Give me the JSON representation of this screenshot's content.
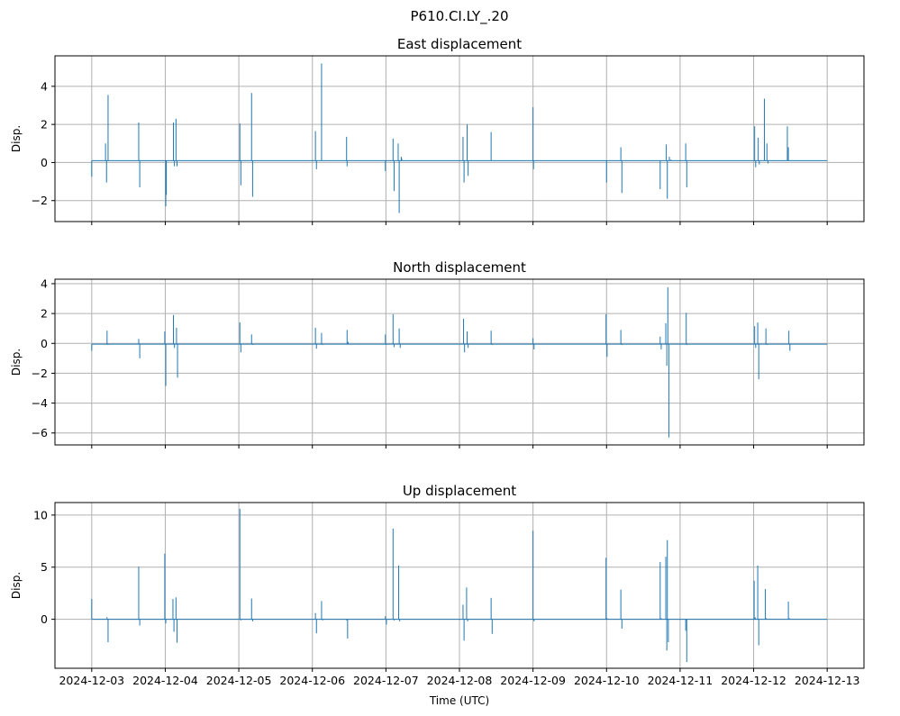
{
  "figure": {
    "title": "P610.CI.LY_.20",
    "xlabel": "Time (UTC)"
  },
  "colors": {
    "trace": "#1f77b4",
    "grid": "#b0b0b0"
  },
  "chart_data": [
    {
      "type": "line",
      "title": "East displacement",
      "xlabel": "",
      "ylabel": "Disp.",
      "ylim": [
        -3.1,
        5.6
      ],
      "yticks": [
        -2,
        0,
        2,
        4
      ],
      "grid": true,
      "x_range": [
        "2024-12-03",
        "2024-12-13"
      ],
      "baseline": 0.1,
      "series": [
        {
          "x": [
            "2024-12-03 00:00",
            "2024-12-03 00:10",
            "2024-12-03 04:30",
            "2024-12-03 04:50",
            "2024-12-03 05:20",
            "2024-12-03 05:40",
            "2024-12-03 15:20",
            "2024-12-03 15:40",
            "2024-12-04 00:10",
            "2024-12-04 00:20",
            "2024-12-04 02:40",
            "2024-12-04 03:00",
            "2024-12-04 03:30",
            "2024-12-04 03:50",
            "2024-12-05 00:20",
            "2024-12-05 00:40",
            "2024-12-05 04:10",
            "2024-12-05 04:30",
            "2024-12-06 01:00",
            "2024-12-06 01:20",
            "2024-12-06 03:00",
            "2024-12-06 03:20",
            "2024-12-06 11:10",
            "2024-12-06 11:20",
            "2024-12-06 23:50",
            "2024-12-07 00:00",
            "2024-12-07 02:20",
            "2024-12-07 02:40",
            "2024-12-07 04:00",
            "2024-12-07 04:20",
            "2024-12-07 05:00",
            "2024-12-07 05:10",
            "2024-12-08 01:10",
            "2024-12-08 01:30",
            "2024-12-08 02:30",
            "2024-12-08 02:50",
            "2024-12-08 10:20",
            "2024-12-08 10:30",
            "2024-12-09 00:00",
            "2024-12-09 00:10",
            "2024-12-09 00:20",
            "2024-12-10 00:00",
            "2024-12-10 00:20",
            "2024-12-10 04:40",
            "2024-12-10 05:00",
            "2024-12-10 17:30",
            "2024-12-10 17:50",
            "2024-12-10 19:30",
            "2024-12-10 19:50",
            "2024-12-10 20:30",
            "2024-12-10 21:00",
            "2024-12-11 01:50",
            "2024-12-11 02:10",
            "2024-12-12 00:20",
            "2024-12-12 00:40",
            "2024-12-12 01:30",
            "2024-12-12 01:50",
            "2024-12-12 03:30",
            "2024-12-12 03:50",
            "2024-12-12 04:20",
            "2024-12-12 04:40",
            "2024-12-12 11:00",
            "2024-12-12 11:20",
            "2024-12-12 12:00"
          ],
          "y": [
            -0.75,
            0.1,
            1.0,
            -1.05,
            3.55,
            0.1,
            2.1,
            -1.3,
            -2.3,
            -1.7,
            2.1,
            -0.2,
            2.3,
            -0.2,
            2.05,
            -1.2,
            3.65,
            -1.8,
            1.65,
            -0.35,
            5.2,
            0.1,
            1.35,
            -0.2,
            -0.45,
            0.1,
            1.25,
            -1.5,
            1.0,
            -2.65,
            0.3,
            0.2,
            1.35,
            -1.05,
            2.0,
            -0.7,
            1.6,
            0.1,
            2.9,
            -0.35,
            0.1,
            -1.05,
            0.1,
            0.8,
            -1.6,
            -1.4,
            0.1,
            0.95,
            -1.9,
            0.3,
            0.15,
            1.0,
            -1.3,
            1.9,
            -0.25,
            1.3,
            -0.1,
            3.35,
            0.1,
            1.0,
            -0.05,
            1.9,
            0.8,
            0.1
          ]
        }
      ]
    },
    {
      "type": "line",
      "title": "North displacement",
      "xlabel": "",
      "ylabel": "Disp.",
      "ylim": [
        -6.8,
        4.3
      ],
      "yticks": [
        -6,
        -4,
        -2,
        0,
        2,
        4
      ],
      "grid": true,
      "x_range": [
        "2024-12-03",
        "2024-12-13"
      ],
      "baseline": -0.05,
      "series": [
        {
          "x": [
            "2024-12-03 00:00",
            "2024-12-03 00:10",
            "2024-12-03 05:00",
            "2024-12-03 05:20",
            "2024-12-03 15:20",
            "2024-12-03 15:40",
            "2024-12-03 23:50",
            "2024-12-04 00:10",
            "2024-12-04 02:40",
            "2024-12-04 03:00",
            "2024-12-04 03:40",
            "2024-12-04 04:00",
            "2024-12-05 00:20",
            "2024-12-05 00:40",
            "2024-12-05 04:10",
            "2024-12-05 04:30",
            "2024-12-06 01:00",
            "2024-12-06 01:20",
            "2024-12-06 03:00",
            "2024-12-06 03:20",
            "2024-12-06 11:20",
            "2024-12-06 11:40",
            "2024-12-06 23:50",
            "2024-12-07 00:10",
            "2024-12-07 02:20",
            "2024-12-07 02:40",
            "2024-12-07 04:20",
            "2024-12-07 04:40",
            "2024-12-08 01:20",
            "2024-12-08 01:40",
            "2024-12-08 02:30",
            "2024-12-08 02:50",
            "2024-12-08 10:20",
            "2024-12-08 10:40",
            "2024-12-09 00:00",
            "2024-12-09 00:20",
            "2024-12-09 23:50",
            "2024-12-10 00:10",
            "2024-12-10 04:40",
            "2024-12-10 05:00",
            "2024-12-10 17:30",
            "2024-12-10 17:50",
            "2024-12-10 19:20",
            "2024-12-10 19:40",
            "2024-12-10 20:00",
            "2024-12-10 20:20",
            "2024-12-11 02:00",
            "2024-12-11 02:20",
            "2024-12-12 00:20",
            "2024-12-12 00:40",
            "2024-12-12 01:20",
            "2024-12-12 01:40",
            "2024-12-12 04:00",
            "2024-12-12 04:20",
            "2024-12-12 11:30",
            "2024-12-12 11:50"
          ],
          "y": [
            -0.5,
            -0.05,
            0.85,
            -0.1,
            0.3,
            -1.0,
            0.8,
            -2.85,
            1.9,
            -0.3,
            1.05,
            -2.3,
            1.4,
            -0.6,
            0.6,
            -0.1,
            1.05,
            -0.35,
            0.7,
            -0.1,
            0.9,
            0.1,
            0.6,
            -0.1,
            1.95,
            -0.25,
            1.0,
            -0.3,
            1.65,
            -0.6,
            0.8,
            -0.3,
            0.85,
            -0.1,
            0.35,
            -0.4,
            1.95,
            -0.9,
            0.9,
            -0.1,
            0.45,
            -0.4,
            1.35,
            -1.5,
            3.75,
            -6.3,
            2.05,
            -0.1,
            1.15,
            -0.3,
            1.4,
            -2.4,
            1.0,
            -0.1,
            0.85,
            -0.5
          ]
        }
      ]
    },
    {
      "type": "line",
      "title": "Up displacement",
      "xlabel": "Time (UTC)",
      "ylabel": "Disp.",
      "ylim": [
        -4.7,
        11.2
      ],
      "yticks": [
        0,
        5,
        10
      ],
      "grid": true,
      "x_range": [
        "2024-12-03",
        "2024-12-13"
      ],
      "x_ticks": [
        "2024-12-03",
        "2024-12-04",
        "2024-12-05",
        "2024-12-06",
        "2024-12-07",
        "2024-12-08",
        "2024-12-09",
        "2024-12-10",
        "2024-12-11",
        "2024-12-12",
        "2024-12-13"
      ],
      "baseline": 0.0,
      "series": [
        {
          "x": [
            "2024-12-03 00:00",
            "2024-12-03 00:10",
            "2024-12-03 05:00",
            "2024-12-03 05:20",
            "2024-12-03 15:20",
            "2024-12-03 15:40",
            "2024-12-03 23:50",
            "2024-12-04 00:10",
            "2024-12-04 02:30",
            "2024-12-04 02:50",
            "2024-12-04 03:30",
            "2024-12-04 03:50",
            "2024-12-05 00:20",
            "2024-12-05 00:40",
            "2024-12-05 04:10",
            "2024-12-05 04:30",
            "2024-12-06 01:00",
            "2024-12-06 01:20",
            "2024-12-06 03:00",
            "2024-12-06 03:20",
            "2024-12-06 11:10",
            "2024-12-06 11:30",
            "2024-12-06 23:50",
            "2024-12-07 00:10",
            "2024-12-07 02:20",
            "2024-12-07 02:40",
            "2024-12-07 04:10",
            "2024-12-07 04:30",
            "2024-12-08 01:10",
            "2024-12-08 01:30",
            "2024-12-08 02:20",
            "2024-12-08 02:40",
            "2024-12-08 10:20",
            "2024-12-08 10:40",
            "2024-12-09 00:00",
            "2024-12-09 00:20",
            "2024-12-09 23:50",
            "2024-12-10 00:10",
            "2024-12-10 04:40",
            "2024-12-10 05:00",
            "2024-12-10 17:30",
            "2024-12-10 17:50",
            "2024-12-10 19:20",
            "2024-12-10 19:40",
            "2024-12-10 19:50",
            "2024-12-10 20:10",
            "2024-12-11 01:50",
            "2024-12-11 02:10",
            "2024-12-12 00:10",
            "2024-12-12 00:30",
            "2024-12-12 01:20",
            "2024-12-12 01:40",
            "2024-12-12 03:50",
            "2024-12-12 04:10",
            "2024-12-12 11:20",
            "2024-12-12 11:40"
          ],
          "y": [
            1.95,
            0.0,
            0.2,
            -2.2,
            5.05,
            -0.6,
            6.3,
            -0.4,
            1.95,
            -1.2,
            2.1,
            -2.25,
            10.6,
            -0.1,
            2.0,
            -0.2,
            0.6,
            -1.35,
            1.75,
            -0.1,
            -0.1,
            -1.85,
            0.3,
            -0.5,
            8.7,
            -0.1,
            5.15,
            -0.2,
            1.4,
            -2.05,
            3.05,
            -0.2,
            2.05,
            -1.4,
            8.5,
            -0.2,
            5.9,
            0.1,
            2.85,
            -0.9,
            5.5,
            0.1,
            6.0,
            -3.0,
            7.6,
            -2.2,
            -1.1,
            -4.1,
            3.7,
            0.2,
            5.15,
            -2.5,
            2.9,
            0.1,
            1.7,
            0.1
          ]
        }
      ]
    }
  ]
}
